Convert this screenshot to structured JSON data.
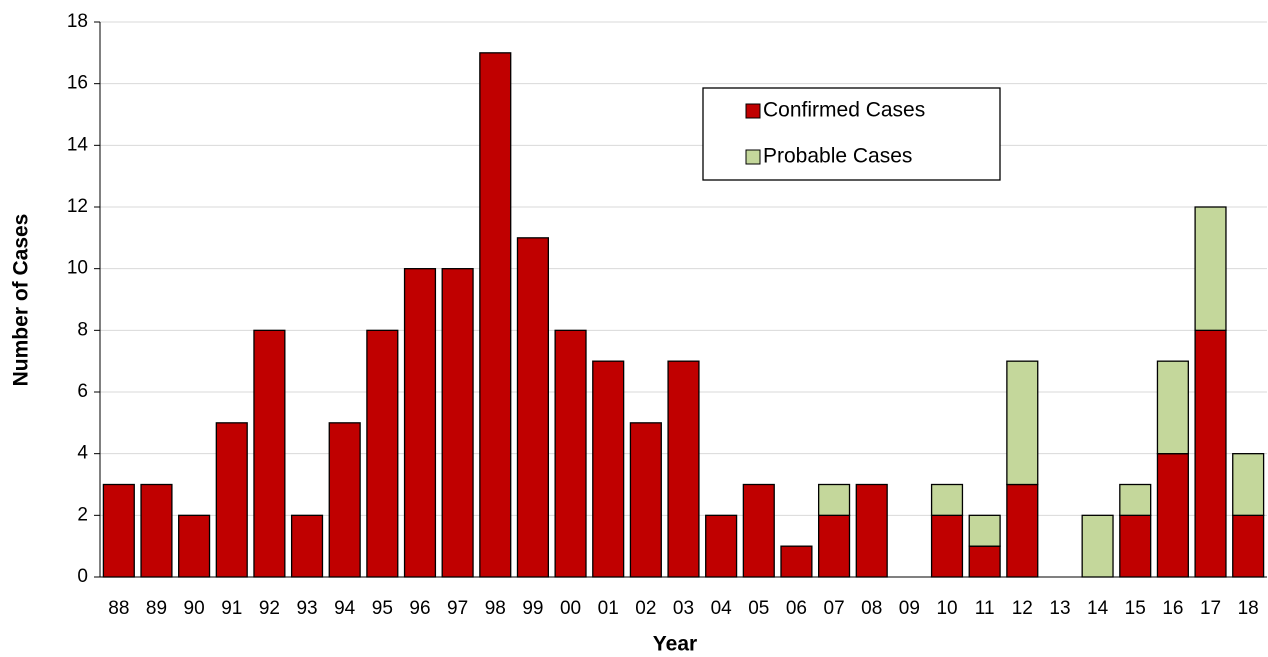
{
  "chart_data": {
    "type": "stacked_bar",
    "x_label": "Year",
    "y_label": "Number of Cases",
    "categories": [
      "88",
      "89",
      "90",
      "91",
      "92",
      "93",
      "94",
      "95",
      "96",
      "97",
      "98",
      "99",
      "00",
      "01",
      "02",
      "03",
      "04",
      "05",
      "06",
      "07",
      "08",
      "09",
      "10",
      "11",
      "12",
      "13",
      "14",
      "15",
      "16",
      "17",
      "18"
    ],
    "series": [
      {
        "name": "Confirmed Cases",
        "color": "#c00000",
        "values": [
          3,
          3,
          2,
          5,
          8,
          2,
          5,
          8,
          10,
          10,
          17,
          11,
          8,
          7,
          5,
          7,
          2,
          3,
          1,
          2,
          3,
          0,
          2,
          1,
          3,
          0,
          0,
          2,
          4,
          8,
          2
        ]
      },
      {
        "name": "Probable Cases",
        "color": "#c4d79b",
        "values": [
          0,
          0,
          0,
          0,
          0,
          0,
          0,
          0,
          0,
          0,
          0,
          0,
          0,
          0,
          0,
          0,
          0,
          0,
          0,
          1,
          0,
          0,
          1,
          1,
          4,
          0,
          2,
          1,
          3,
          4,
          2
        ]
      }
    ],
    "ylim": [
      0,
      18
    ],
    "yticks": [
      0,
      2,
      4,
      6,
      8,
      10,
      12,
      14,
      16,
      18
    ],
    "grid": true,
    "legend": "upper right"
  }
}
